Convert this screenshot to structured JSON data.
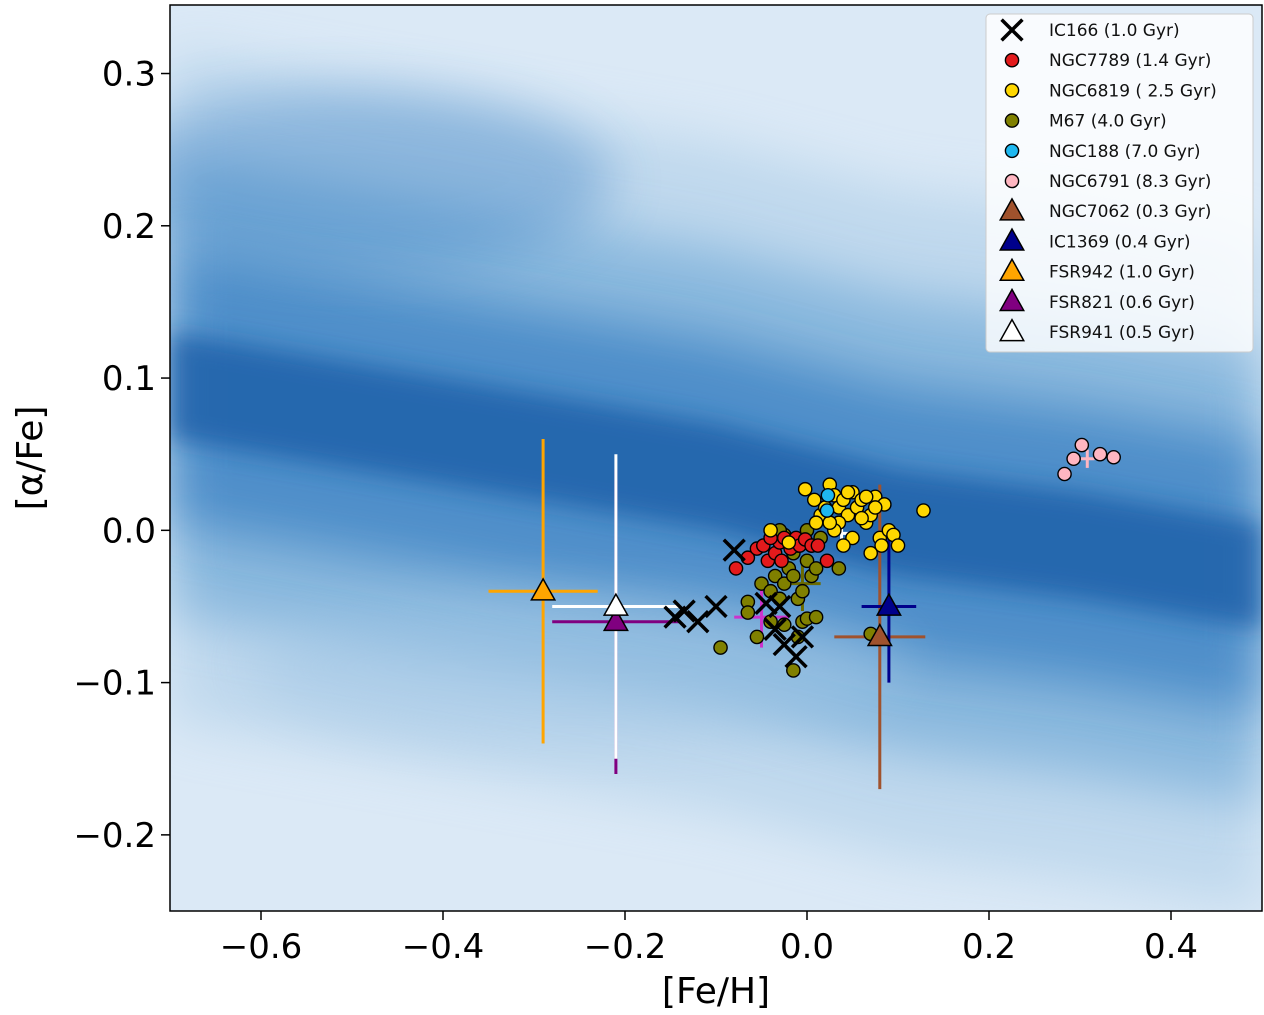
{
  "chart_data": {
    "type": "scatter",
    "title": "",
    "xlabel": "[Fe/H]",
    "ylabel": "[α/Fe]",
    "xlim": [
      -0.7,
      0.5
    ],
    "ylim": [
      -0.25,
      0.345
    ],
    "xticks": [
      -0.6,
      -0.4,
      -0.2,
      0.0,
      0.2,
      0.4
    ],
    "xtick_labels": [
      "−0.6",
      "−0.4",
      "−0.2",
      "0.0",
      "0.2",
      "0.4"
    ],
    "yticks": [
      -0.2,
      -0.1,
      0.0,
      0.1,
      0.2,
      0.3
    ],
    "ytick_labels": [
      "−0.2",
      "−0.1",
      "0.0",
      "0.1",
      "0.2",
      "0.3"
    ],
    "grid": false,
    "legend_position": "top-right",
    "background": {
      "type": "density",
      "color": "#1f5fa8",
      "ridge": [
        [
          -0.7,
          0.095
        ],
        [
          -0.5,
          0.075
        ],
        [
          -0.3,
          0.055
        ],
        [
          -0.1,
          0.035
        ],
        [
          0.0,
          0.02
        ],
        [
          0.1,
          0.005
        ],
        [
          0.3,
          -0.01
        ],
        [
          0.5,
          -0.03
        ]
      ]
    },
    "series": [
      {
        "name": "IC166 (1.0 Gyr)",
        "marker": "x",
        "color": "#000000",
        "points": [
          [
            -0.08,
            -0.013
          ],
          [
            -0.1,
            -0.05
          ],
          [
            -0.12,
            -0.06
          ],
          [
            -0.135,
            -0.053
          ],
          [
            -0.145,
            -0.057
          ],
          [
            -0.035,
            -0.065
          ],
          [
            -0.025,
            -0.075
          ],
          [
            -0.005,
            -0.07
          ],
          [
            -0.012,
            -0.083
          ],
          [
            -0.03,
            -0.05
          ],
          [
            -0.045,
            -0.048
          ]
        ]
      },
      {
        "name": "NGC7789 (1.4 Gyr)",
        "marker": "circle",
        "color": "#e31a1c",
        "points": [
          [
            -0.078,
            -0.025
          ],
          [
            -0.065,
            -0.018
          ],
          [
            -0.055,
            -0.012
          ],
          [
            -0.048,
            -0.01
          ],
          [
            -0.043,
            -0.02
          ],
          [
            -0.035,
            -0.015
          ],
          [
            -0.03,
            -0.008
          ],
          [
            -0.025,
            -0.005
          ],
          [
            -0.018,
            -0.012
          ],
          [
            -0.012,
            -0.005
          ],
          [
            -0.008,
            -0.01
          ],
          [
            -0.002,
            -0.006
          ],
          [
            0.005,
            -0.01
          ],
          [
            0.012,
            -0.01
          ],
          [
            0.022,
            -0.02
          ],
          [
            -0.028,
            -0.02
          ],
          [
            -0.04,
            -0.005
          ]
        ]
      },
      {
        "name": "NGC6819 ( 2.5 Gyr)",
        "marker": "circle",
        "color": "#ffd700",
        "points": [
          [
            -0.002,
            0.027
          ],
          [
            0.008,
            0.02
          ],
          [
            0.015,
            0.01
          ],
          [
            0.02,
            0.015
          ],
          [
            0.025,
            0.03
          ],
          [
            0.03,
            0.023
          ],
          [
            0.035,
            0.015
          ],
          [
            0.04,
            0.02
          ],
          [
            0.045,
            0.01
          ],
          [
            0.05,
            0.025
          ],
          [
            0.055,
            0.015
          ],
          [
            0.06,
            0.02
          ],
          [
            0.065,
            0.005
          ],
          [
            0.07,
            0.01
          ],
          [
            0.075,
            0.022
          ],
          [
            0.08,
            -0.005
          ],
          [
            0.085,
            0.017
          ],
          [
            0.09,
            0.0
          ],
          [
            0.095,
            -0.003
          ],
          [
            0.1,
            -0.01
          ],
          [
            0.06,
            0.008
          ],
          [
            0.05,
            -0.005
          ],
          [
            0.04,
            -0.01
          ],
          [
            0.07,
            -0.015
          ],
          [
            0.035,
            0.005
          ],
          [
            0.03,
            0.0
          ],
          [
            0.082,
            -0.01
          ],
          [
            0.01,
            0.005
          ],
          [
            0.075,
            0.015
          ],
          [
            0.128,
            0.013
          ],
          [
            -0.04,
            0.0
          ],
          [
            -0.02,
            -0.008
          ],
          [
            0.045,
            0.025
          ],
          [
            0.065,
            0.022
          ],
          [
            0.025,
            0.005
          ]
        ]
      },
      {
        "name": "M67 (4.0 Gyr)",
        "marker": "circle",
        "color": "#808000",
        "points": [
          [
            -0.095,
            -0.077
          ],
          [
            -0.065,
            -0.047
          ],
          [
            -0.065,
            -0.054
          ],
          [
            -0.055,
            -0.07
          ],
          [
            -0.05,
            -0.035
          ],
          [
            -0.04,
            -0.04
          ],
          [
            -0.035,
            -0.03
          ],
          [
            -0.03,
            -0.045
          ],
          [
            -0.025,
            -0.035
          ],
          [
            -0.02,
            -0.025
          ],
          [
            -0.015,
            -0.03
          ],
          [
            -0.01,
            -0.045
          ],
          [
            -0.005,
            -0.04
          ],
          [
            0.0,
            -0.02
          ],
          [
            0.005,
            -0.03
          ],
          [
            0.01,
            -0.025
          ],
          [
            -0.015,
            -0.015
          ],
          [
            -0.005,
            -0.06
          ],
          [
            0.0,
            -0.058
          ],
          [
            0.01,
            -0.057
          ],
          [
            -0.01,
            -0.07
          ],
          [
            -0.015,
            -0.092
          ],
          [
            -0.025,
            -0.062
          ],
          [
            0.07,
            -0.068
          ],
          [
            -0.04,
            -0.06
          ],
          [
            0.035,
            -0.025
          ],
          [
            0.015,
            -0.005
          ],
          [
            0.005,
            -0.01
          ],
          [
            -0.025,
            -0.003
          ],
          [
            -0.01,
            -0.01
          ],
          [
            0.0,
            0.0
          ],
          [
            -0.03,
            0.0
          ]
        ]
      },
      {
        "name": "NGC188 (7.0 Gyr)",
        "marker": "circle",
        "color": "#1fb8f0",
        "points": [
          [
            0.023,
            0.023
          ],
          [
            0.022,
            0.013
          ]
        ]
      },
      {
        "name": "NGC6791 (8.3 Gyr)",
        "marker": "circle",
        "color": "#ffb6c1",
        "points": [
          [
            0.283,
            0.037
          ],
          [
            0.293,
            0.047
          ],
          [
            0.302,
            0.056
          ],
          [
            0.322,
            0.05
          ],
          [
            0.337,
            0.048
          ]
        ]
      },
      {
        "name": "NGC7062 (0.3 Gyr)",
        "marker": "triangle",
        "color": "#a0522d",
        "points": [
          [
            0.08,
            -0.07
          ]
        ],
        "xerr": 0.05,
        "yerr": 0.1
      },
      {
        "name": "IC1369 (0.4 Gyr)",
        "marker": "triangle",
        "color": "#00008b",
        "points": [
          [
            0.09,
            -0.05
          ]
        ],
        "xerr": 0.03,
        "yerr": 0.05
      },
      {
        "name": "FSR942 (1.0 Gyr)",
        "marker": "triangle",
        "color": "#ffa500",
        "points": [
          [
            -0.29,
            -0.04
          ]
        ],
        "xerr": 0.06,
        "yerr": 0.1
      },
      {
        "name": "FSR821 (0.6 Gyr)",
        "marker": "triangle",
        "color": "#800080",
        "points": [
          [
            -0.21,
            -0.06
          ]
        ],
        "xerr": 0.07,
        "yerr": 0.1
      },
      {
        "name": "FSR941 (0.5 Gyr)",
        "marker": "triangle",
        "color": "#ffffff",
        "points": [
          [
            -0.21,
            -0.05
          ]
        ],
        "xerr": 0.07,
        "yerr": 0.1
      }
    ],
    "error_crosses": [
      {
        "color": "#ffb6c1",
        "x": 0.308,
        "y": 0.047,
        "xerr": 0.008,
        "yerr": 0.006
      },
      {
        "color": "#6b6b00",
        "x": -0.005,
        "y": -0.035,
        "xerr": 0.02,
        "yerr": 0.018
      },
      {
        "color": "#cc33cc",
        "x": -0.05,
        "y": -0.057,
        "xerr": 0.03,
        "yerr": 0.02
      },
      {
        "color": "#ffffff",
        "x": 0.038,
        "y": -0.002,
        "xerr": 0.01,
        "yerr": 0.006
      }
    ]
  }
}
